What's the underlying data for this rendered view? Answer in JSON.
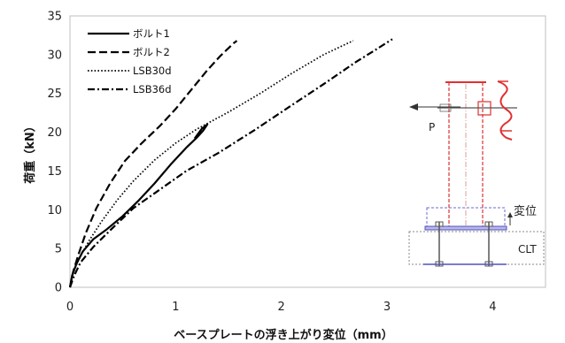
{
  "chart_data": {
    "type": "line",
    "xlabel": "ベースプレートの浮き上がり変位（mm）",
    "ylabel": "荷重（kN）",
    "xlim": [
      0,
      4.5
    ],
    "ylim": [
      0,
      35
    ],
    "xticks": [
      0,
      1,
      2,
      3,
      4
    ],
    "yticks": [
      0,
      5,
      10,
      15,
      20,
      25,
      30,
      35
    ],
    "grid": false,
    "legend_position": "top-left",
    "series": [
      {
        "name": "ボルト1",
        "style": "solid",
        "points": [
          [
            0,
            0
          ],
          [
            0.02,
            1.5
          ],
          [
            0.06,
            3
          ],
          [
            0.12,
            4.6
          ],
          [
            0.22,
            6.2
          ],
          [
            0.35,
            7.5
          ],
          [
            0.5,
            9.2
          ],
          [
            0.65,
            11.2
          ],
          [
            0.8,
            13.4
          ],
          [
            0.95,
            15.8
          ],
          [
            1.1,
            18
          ],
          [
            1.2,
            19.3
          ],
          [
            1.26,
            20.2
          ],
          [
            1.3,
            21
          ],
          [
            1.25,
            20.5
          ],
          [
            1.18,
            19.2
          ]
        ]
      },
      {
        "name": "ボルト2",
        "style": "dashed",
        "points": [
          [
            0,
            0
          ],
          [
            0.03,
            2
          ],
          [
            0.08,
            4.2
          ],
          [
            0.15,
            7
          ],
          [
            0.25,
            10.2
          ],
          [
            0.38,
            13.4
          ],
          [
            0.52,
            16.3
          ],
          [
            0.68,
            18.6
          ],
          [
            0.85,
            20.8
          ],
          [
            1,
            23
          ],
          [
            1.15,
            25.5
          ],
          [
            1.3,
            28
          ],
          [
            1.42,
            29.8
          ],
          [
            1.55,
            31.5
          ],
          [
            1.58,
            31.8
          ]
        ]
      },
      {
        "name": "LSB30d",
        "style": "dotted",
        "points": [
          [
            0,
            0
          ],
          [
            0.03,
            1.8
          ],
          [
            0.08,
            3.5
          ],
          [
            0.18,
            6
          ],
          [
            0.3,
            8.5
          ],
          [
            0.45,
            11.3
          ],
          [
            0.6,
            13.7
          ],
          [
            0.8,
            16.4
          ],
          [
            1,
            18.6
          ],
          [
            1.2,
            20.4
          ],
          [
            1.5,
            22.6
          ],
          [
            1.8,
            25
          ],
          [
            2.1,
            27.6
          ],
          [
            2.4,
            30
          ],
          [
            2.6,
            31.3
          ],
          [
            2.68,
            31.8
          ]
        ]
      },
      {
        "name": "LSB36d",
        "style": "dashdot",
        "points": [
          [
            0,
            0
          ],
          [
            0.04,
            1.5
          ],
          [
            0.1,
            3.2
          ],
          [
            0.22,
            5.2
          ],
          [
            0.4,
            7.6
          ],
          [
            0.6,
            10.2
          ],
          [
            0.85,
            12.6
          ],
          [
            1.1,
            15
          ],
          [
            1.4,
            17.3
          ],
          [
            1.75,
            20.3
          ],
          [
            2.1,
            23.5
          ],
          [
            2.4,
            26.2
          ],
          [
            2.7,
            29
          ],
          [
            2.9,
            30.7
          ],
          [
            3.05,
            32
          ]
        ]
      }
    ]
  },
  "diagram": {
    "load_label": "P",
    "displacement_label": "変位",
    "clt_label": "CLT"
  }
}
